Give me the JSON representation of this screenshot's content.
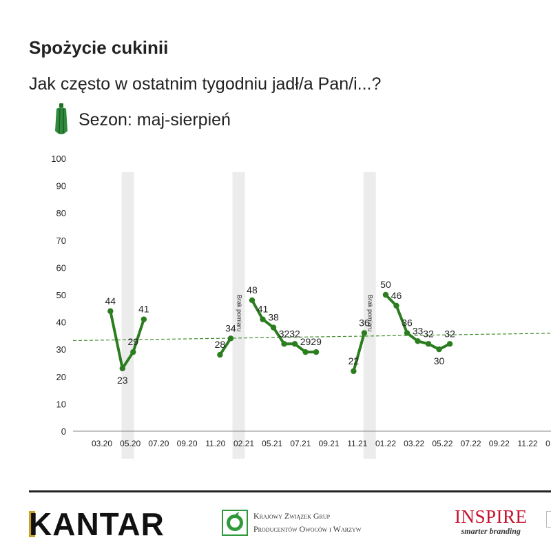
{
  "title": "Spożycie cukinii",
  "subtitle": "Jak często w ostatnim tygodniu jadł/a Pan/i...?",
  "season_label": "Sezon: maj-sierpień",
  "colors": {
    "line": "#2b7d1f",
    "trend": "#3f8c2a",
    "band": "#ececec",
    "axis": "#888888"
  },
  "chart_data": {
    "type": "line",
    "title": "",
    "xlabel": "",
    "ylabel": "",
    "ylim": [
      0,
      100
    ],
    "yticks": [
      0,
      10,
      20,
      30,
      40,
      50,
      60,
      70,
      80,
      90,
      100
    ],
    "xtick_labels": [
      "03.20",
      "05.20",
      "07.20",
      "09.20",
      "11.20",
      "02.21",
      "05.21",
      "07.21",
      "09.21",
      "11.21",
      "01.22",
      "03.22",
      "05.22",
      "07.22",
      "09.22",
      "11.22",
      "01.23",
      "03.23",
      "0"
    ],
    "series": [
      {
        "points": [
          {
            "x": 2.8,
            "y": 44
          },
          {
            "x": 3.7,
            "y": 23
          },
          {
            "x": 4.5,
            "y": 29
          },
          {
            "x": 5.3,
            "y": 41
          }
        ]
      },
      {
        "points": [
          {
            "x": 11.0,
            "y": 28
          },
          {
            "x": 11.8,
            "y": 34
          }
        ]
      },
      {
        "points": [
          {
            "x": 13.4,
            "y": 48
          },
          {
            "x": 14.2,
            "y": 41
          },
          {
            "x": 15.0,
            "y": 38
          },
          {
            "x": 15.8,
            "y": 32
          },
          {
            "x": 16.6,
            "y": 32
          },
          {
            "x": 17.4,
            "y": 29
          },
          {
            "x": 18.2,
            "y": 29
          }
        ]
      },
      {
        "points": [
          {
            "x": 21.0,
            "y": 22
          },
          {
            "x": 21.8,
            "y": 36
          }
        ]
      },
      {
        "points": [
          {
            "x": 23.4,
            "y": 50
          },
          {
            "x": 24.2,
            "y": 46
          },
          {
            "x": 25.0,
            "y": 36
          },
          {
            "x": 25.8,
            "y": 33
          },
          {
            "x": 26.6,
            "y": 32
          },
          {
            "x": 27.4,
            "y": 30
          },
          {
            "x": 28.2,
            "y": 32
          }
        ]
      }
    ],
    "trend": {
      "start": 33.2,
      "end": 35.9,
      "style": "dashed"
    },
    "bands": [
      {
        "x": 4.1,
        "label": ""
      },
      {
        "x": 12.4,
        "label": "Brak pomiaru"
      },
      {
        "x": 22.2,
        "label": "Brak pomiaru"
      }
    ],
    "grid": false,
    "legend": "none"
  },
  "footer": {
    "kantar": "KANTAR",
    "kzgp_line1": "Krajowy Związek Grup",
    "kzgp_line2": "Producentów Owoców i Warzyw",
    "inspire_name": "INSPIRE",
    "inspire_tagline": "smarter branding"
  }
}
